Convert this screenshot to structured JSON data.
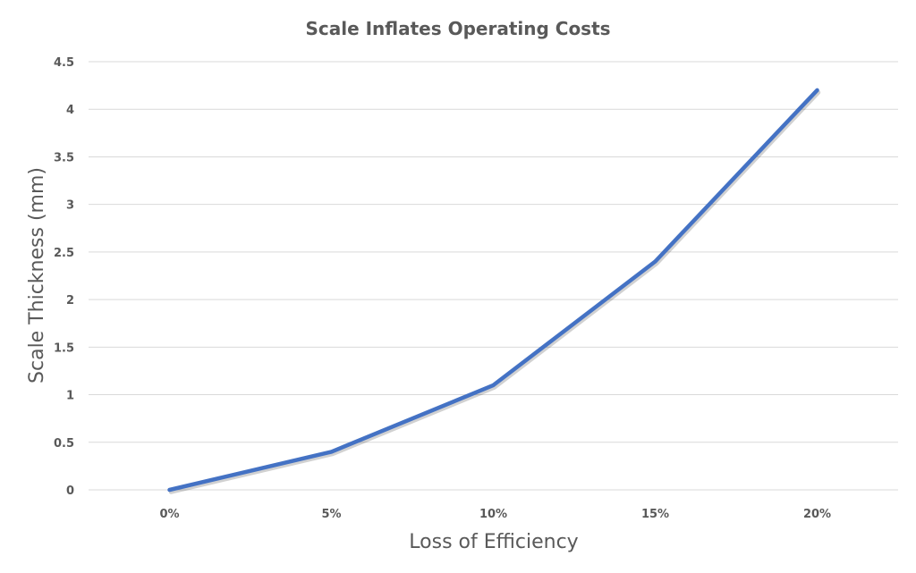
{
  "chart_data": {
    "type": "line",
    "title": "Scale Inflates Operating Costs",
    "xlabel": "Loss of Efficiency",
    "ylabel": "Scale Thickness (mm)",
    "categories": [
      "0%",
      "5%",
      "10%",
      "15%",
      "20%"
    ],
    "series": [
      {
        "values": [
          0,
          0.4,
          1.1,
          2.4,
          4.2
        ],
        "color": "#4472C4"
      }
    ],
    "ylim": [
      0,
      4.5
    ],
    "yticks": [
      "0",
      "0.5",
      "1",
      "1.5",
      "2",
      "2.5",
      "3",
      "3.5",
      "4",
      "4.5"
    ],
    "grid": true,
    "legend": "none"
  }
}
